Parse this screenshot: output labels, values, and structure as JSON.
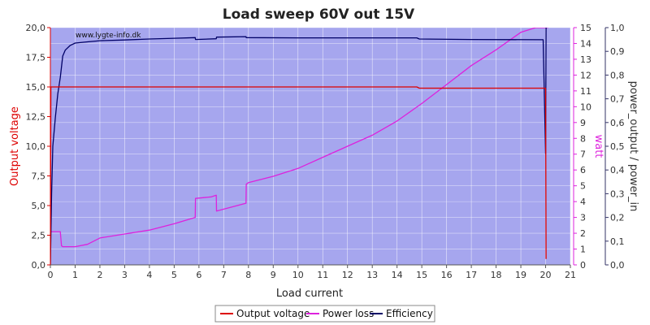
{
  "chart_data": {
    "type": "line",
    "title": "Load sweep 60V out 15V",
    "watermark": "www.lygte-info.dk",
    "xlabel": "Load current",
    "ylabel_left": "Output voltage",
    "ylabel_right1": "watt",
    "ylabel_right2": "power_output / power_in",
    "xlim": [
      0,
      21
    ],
    "ylim_left": [
      0,
      20
    ],
    "ylim_right1": [
      0,
      15
    ],
    "ylim_right2": [
      0,
      1
    ],
    "x_ticks": [
      "0",
      "1",
      "2",
      "3",
      "4",
      "5",
      "6",
      "7",
      "8",
      "9",
      "10",
      "11",
      "12",
      "13",
      "14",
      "15",
      "16",
      "17",
      "18",
      "19",
      "20",
      "21"
    ],
    "y_left_ticks": [
      "0,0",
      "2,5",
      "5,0",
      "7,5",
      "10,0",
      "12,5",
      "15,0",
      "17,5",
      "20,0"
    ],
    "y_right1_ticks": [
      "0",
      "1",
      "2",
      "3",
      "4",
      "5",
      "6",
      "7",
      "8",
      "9",
      "10",
      "11",
      "12",
      "13",
      "14",
      "15"
    ],
    "y_right2_ticks": [
      "0,0",
      "0,1",
      "0,2",
      "0,3",
      "0,4",
      "0,5",
      "0,6",
      "0,7",
      "0,8",
      "0,9",
      "1,0"
    ],
    "grid": true,
    "legend_position": "bottom-center",
    "background_color": "#a6a6ee",
    "series": [
      {
        "name": "Output voltage",
        "axis": "left",
        "color": "#dd0000",
        "x": [
          0.0,
          0.02,
          0.05,
          0.1,
          0.2,
          0.3,
          0.4,
          0.5,
          1,
          2,
          3,
          5,
          8,
          10,
          12,
          14,
          14.8,
          14.9,
          15,
          17,
          19,
          19.9,
          20.0,
          20.02
        ],
        "y": [
          0.0,
          15.0,
          15.0,
          15.0,
          15.0,
          15.0,
          15.0,
          15.0,
          15.0,
          15.0,
          15.0,
          15.0,
          15.0,
          15.0,
          15.0,
          15.0,
          15.0,
          14.9,
          14.9,
          14.9,
          14.9,
          14.9,
          14.9,
          0.5
        ]
      },
      {
        "name": "Power loss",
        "axis": "right1",
        "color": "#dd22dd",
        "x": [
          0.0,
          0.4,
          0.45,
          0.5,
          1.0,
          1.5,
          2.0,
          3.0,
          4.0,
          5.0,
          5.85,
          5.86,
          6.5,
          6.7,
          6.71,
          7.9,
          7.91,
          8.0,
          9.0,
          10.0,
          11.0,
          12.0,
          13.0,
          14.0,
          15.0,
          16.0,
          17.0,
          18.0,
          19.0,
          19.6,
          20.0,
          20.1
        ],
        "y": [
          2.1,
          2.1,
          1.2,
          1.15,
          1.15,
          1.3,
          1.7,
          1.95,
          2.2,
          2.6,
          3.0,
          4.2,
          4.3,
          4.4,
          3.4,
          3.9,
          5.1,
          5.2,
          5.6,
          6.1,
          6.8,
          7.5,
          8.2,
          9.1,
          10.2,
          11.4,
          12.6,
          13.6,
          14.7,
          15.0,
          15.0,
          15.0
        ]
      },
      {
        "name": "Efficiency",
        "axis": "right2",
        "color": "#000066",
        "x": [
          0.0,
          0.05,
          0.1,
          0.2,
          0.3,
          0.4,
          0.5,
          0.6,
          0.8,
          1.0,
          1.5,
          2.0,
          3.0,
          4.0,
          5.0,
          5.85,
          5.86,
          6.7,
          6.71,
          7.9,
          7.91,
          10.0,
          14.8,
          14.9,
          17.0,
          19.9,
          20.0,
          20.02
        ],
        "y": [
          0.0,
          0.3,
          0.5,
          0.62,
          0.72,
          0.79,
          0.88,
          0.905,
          0.925,
          0.935,
          0.94,
          0.945,
          0.948,
          0.952,
          0.955,
          0.958,
          0.95,
          0.953,
          0.96,
          0.962,
          0.958,
          0.957,
          0.957,
          0.952,
          0.95,
          0.949,
          0.47,
          1.0
        ]
      }
    ]
  }
}
